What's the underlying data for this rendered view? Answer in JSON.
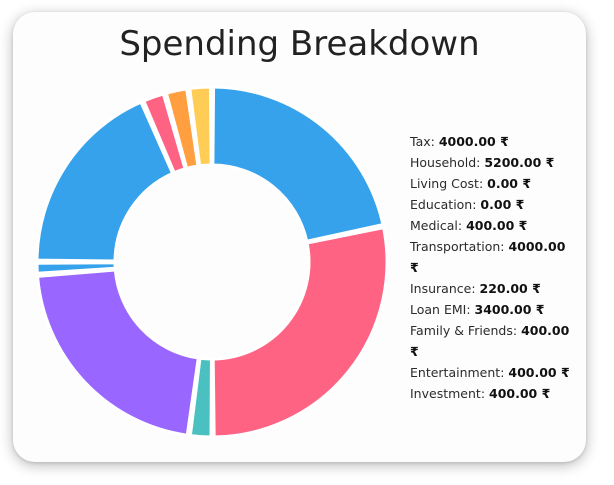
{
  "title": "Spending Breakdown",
  "chart_data": {
    "type": "doughnut",
    "title": "Spending Breakdown",
    "currency_symbol": "₹",
    "categories": [
      "Tax",
      "Household",
      "Living Cost",
      "Education",
      "Medical",
      "Transportation",
      "Insurance",
      "Loan EMI",
      "Family & Friends",
      "Entertainment",
      "Investment"
    ],
    "values": [
      4000,
      5200,
      0,
      0,
      400,
      4000,
      220,
      3400,
      400,
      400,
      400
    ],
    "value_labels": [
      "4000.00 ₹",
      "5200.00 ₹",
      "0.00 ₹",
      "0.00 ₹",
      "400.00 ₹",
      "4000.00 ₹",
      "220.00 ₹",
      "3400.00 ₹",
      "400.00 ₹",
      "400.00 ₹",
      "400.00 ₹"
    ],
    "colors": [
      "#36a2eb",
      "#ff6384",
      "#4bc0c0",
      "#ff9f40",
      "#9966ff",
      "#ffcd56",
      "#c9cbcf",
      "#36a2eb",
      "#ff6384",
      "#ff9f40",
      "#ffcd56"
    ],
    "legend_position": "right"
  }
}
